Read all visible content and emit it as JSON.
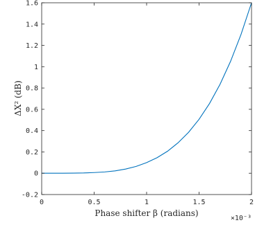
{
  "chart_data": {
    "type": "line",
    "xlabel": "Phase shifter β (radians)",
    "ylabel": "ΔX² (dB)",
    "x_exponent_label": "×10⁻³",
    "xlim": [
      0,
      0.002
    ],
    "ylim": [
      -0.2,
      1.6
    ],
    "x_ticks": [
      0,
      0.0005,
      0.001,
      0.0015,
      0.002
    ],
    "x_tick_labels": [
      "0",
      "0.5",
      "1",
      "1.5",
      "2"
    ],
    "y_ticks": [
      -0.2,
      0,
      0.2,
      0.4,
      0.6,
      0.8,
      1,
      1.2,
      1.4,
      1.6
    ],
    "y_tick_labels": [
      "-0.2",
      "0",
      "0.2",
      "0.4",
      "0.6",
      "0.8",
      "1",
      "1.2",
      "1.4",
      "1.6"
    ],
    "grid": false,
    "series": [
      {
        "color": "#0072BD",
        "x": [
          0,
          0.0001,
          0.0002,
          0.0003,
          0.0004,
          0.0005,
          0.0006,
          0.0007,
          0.0008,
          0.0009,
          0.001,
          0.0011,
          0.0012,
          0.0013,
          0.0014,
          0.0015,
          0.0016,
          0.0017,
          0.0018,
          0.0019,
          0.002
        ],
        "y": [
          0,
          0,
          0.0003,
          0.001,
          0.0024,
          0.0063,
          0.012,
          0.022,
          0.039,
          0.064,
          0.1,
          0.146,
          0.207,
          0.286,
          0.384,
          0.506,
          0.655,
          0.835,
          1.05,
          1.303,
          1.6
        ]
      }
    ]
  }
}
